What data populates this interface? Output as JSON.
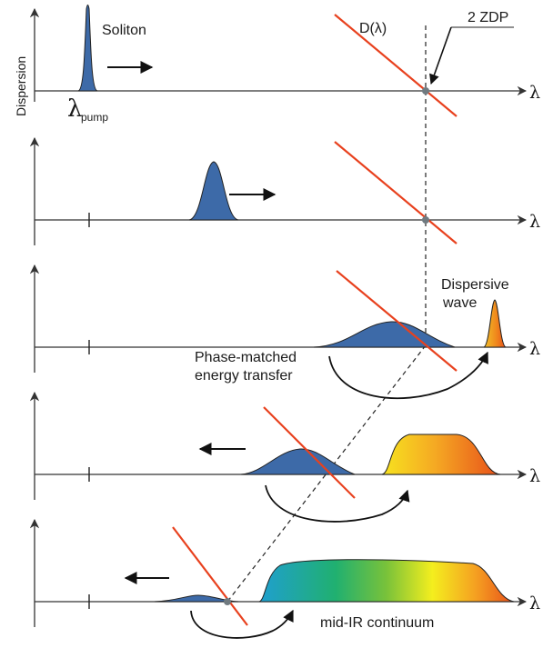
{
  "labels": {
    "y_axis": "Dispersion",
    "lambda": "λ",
    "pump_symbol": "λ",
    "pump_subscript": "pump",
    "soliton": "Soliton",
    "dispersion_curve": "D(λ)",
    "zdp": "2 ZDP",
    "dispersive_wave_line1": "Dispersive",
    "dispersive_wave_line2": "wave",
    "phase_matched_line1": "Phase-matched",
    "phase_matched_line2": "energy transfer",
    "continuum": "mid-IR continuum"
  },
  "colors": {
    "pulse_blue": "#3d6aa8",
    "dispersion_line": "#e8411e",
    "dispersive_wave": "#e8501a",
    "axis": "#333333",
    "zdp_marker": "#707a80"
  },
  "panels": [
    {
      "index": 1,
      "pulse": "soliton"
    },
    {
      "index": 2,
      "pulse": "soliton-shifted"
    },
    {
      "index": 3,
      "pulse": "soliton-and-dispersive-wave"
    },
    {
      "index": 4,
      "pulse": "broadening"
    },
    {
      "index": 5,
      "pulse": "mid-ir-continuum"
    }
  ]
}
